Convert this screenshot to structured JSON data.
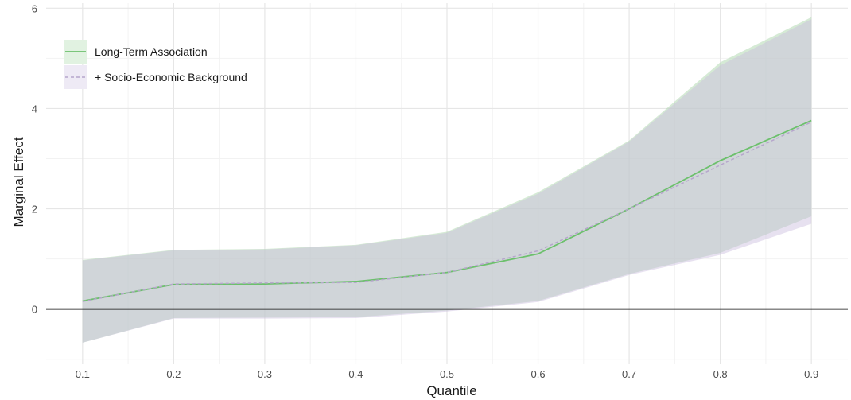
{
  "chart_data": {
    "type": "line",
    "xlabel": "Quantile",
    "ylabel": "Marginal Effect",
    "xlim": [
      0.06,
      0.94
    ],
    "ylim": [
      -1.1,
      6.1
    ],
    "x_ticks": [
      "0.1",
      "0.2",
      "0.3",
      "0.4",
      "0.5",
      "0.6",
      "0.7",
      "0.8",
      "0.9"
    ],
    "y_ticks": [
      "0",
      "2",
      "4",
      "6"
    ],
    "x": [
      0.1,
      0.2,
      0.3,
      0.4,
      0.5,
      0.6,
      0.7,
      0.8,
      0.9
    ],
    "reference_line": 0,
    "grid": true,
    "legend_position": "top-left",
    "series": [
      {
        "name": "Long-Term Association",
        "style": "solid",
        "color": "#7fc97f",
        "band_color": "#b8e0b8",
        "values": [
          0.16,
          0.49,
          0.5,
          0.55,
          0.73,
          1.1,
          2.0,
          2.96,
          3.76
        ],
        "lower": [
          -0.67,
          -0.18,
          -0.17,
          -0.16,
          -0.03,
          0.16,
          0.7,
          1.12,
          1.85
        ],
        "upper": [
          0.98,
          1.18,
          1.2,
          1.28,
          1.54,
          2.33,
          3.36,
          4.92,
          5.82
        ]
      },
      {
        "name": "+ Socio-Economic Background",
        "style": "dashed",
        "color": "#beaed4",
        "band_color": "#ddd4ea",
        "values": [
          0.15,
          0.5,
          0.52,
          0.53,
          0.73,
          1.16,
          2.0,
          2.87,
          3.73
        ],
        "lower": [
          -0.67,
          -0.19,
          -0.19,
          -0.18,
          -0.05,
          0.14,
          0.68,
          1.08,
          1.7
        ],
        "upper": [
          0.97,
          1.17,
          1.19,
          1.27,
          1.52,
          2.3,
          3.34,
          4.86,
          5.78
        ]
      }
    ]
  }
}
